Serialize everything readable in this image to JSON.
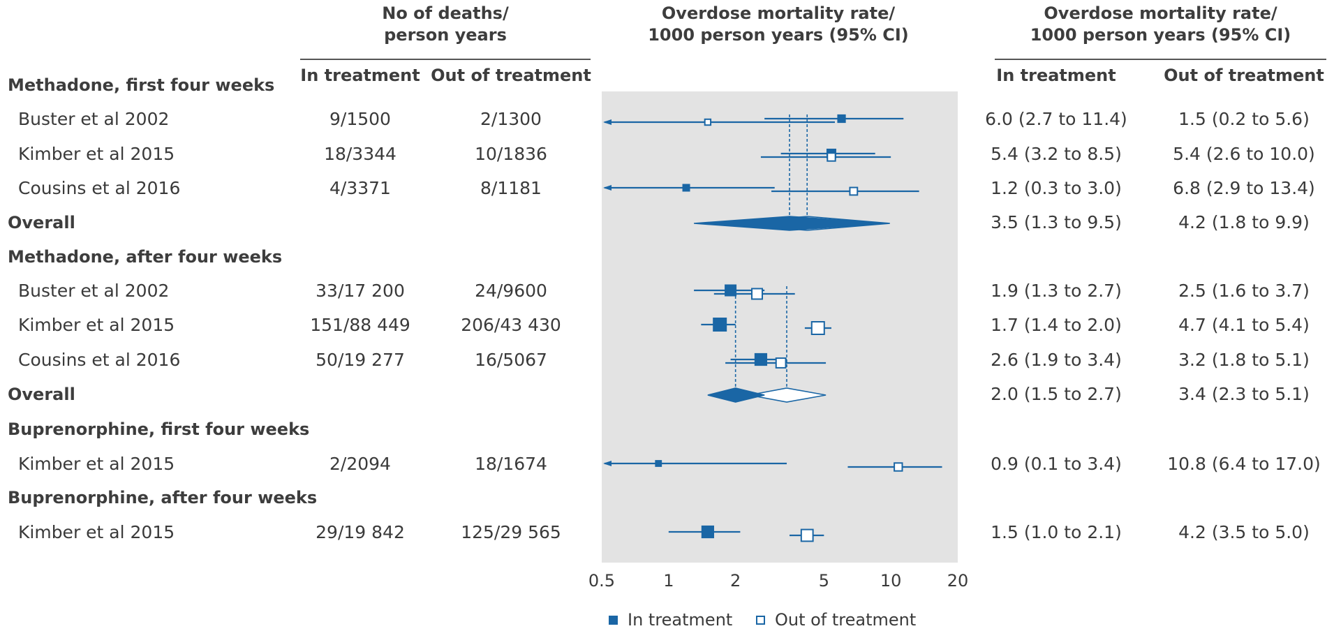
{
  "headers": {
    "deaths_line1": "No of deaths/",
    "deaths_line2": "person years",
    "plot_line1": "Overdose mortality rate/",
    "plot_line2": "1000 person years (95% CI)",
    "rate_line1": "Overdose mortality rate/",
    "rate_line2": "1000 person years (95% CI)",
    "in_treatment": "In treatment",
    "out_of_treatment": "Out of treatment"
  },
  "colors": {
    "in_treatment": "#1a66a5",
    "out_of_treatment": "#1a66a5",
    "plot_background": "#e3e3e3"
  },
  "legend": {
    "in_treatment": "In treatment",
    "out_of_treatment": "Out of treatment"
  },
  "chart_data": {
    "type": "forest",
    "xscale": "log",
    "xlim": [
      0.5,
      20
    ],
    "xticks": [
      0.5,
      1,
      2,
      5,
      10,
      20
    ],
    "xtick_labels": [
      "0.5",
      "1",
      "2",
      "5",
      "10",
      "20"
    ],
    "rows": [
      {
        "kind": "group",
        "label": "Methadone, first four weeks"
      },
      {
        "kind": "study",
        "label": "Buster et al 2002",
        "deaths_in": "9/1500",
        "deaths_out": "2/1300",
        "in": {
          "est": 6.0,
          "lo": 2.7,
          "hi": 11.4,
          "weight": 0.35
        },
        "out": {
          "est": 1.5,
          "lo": 0.2,
          "hi": 5.6,
          "weight": 0.2
        },
        "text_in": "6.0 (2.7 to 11.4)",
        "text_out": "1.5 (0.2 to 5.6)"
      },
      {
        "kind": "study",
        "label": "Kimber et al 2015",
        "deaths_in": "18/3344",
        "deaths_out": "10/1836",
        "in": {
          "est": 5.4,
          "lo": 3.2,
          "hi": 8.5,
          "weight": 0.5
        },
        "out": {
          "est": 5.4,
          "lo": 2.6,
          "hi": 10.0,
          "weight": 0.45
        },
        "text_in": "5.4 (3.2 to 8.5)",
        "text_out": "5.4 (2.6 to 10.0)"
      },
      {
        "kind": "study",
        "label": "Cousins et al 2016",
        "deaths_in": "4/3371",
        "deaths_out": "8/1181",
        "in": {
          "est": 1.2,
          "lo": 0.3,
          "hi": 3.0,
          "weight": 0.25
        },
        "out": {
          "est": 6.8,
          "lo": 2.9,
          "hi": 13.4,
          "weight": 0.4
        },
        "text_in": "1.2 (0.3 to 3.0)",
        "text_out": "6.8 (2.9 to 13.4)"
      },
      {
        "kind": "overall",
        "label": "Overall",
        "in": {
          "est": 3.5,
          "lo": 1.3,
          "hi": 9.5
        },
        "out": {
          "est": 4.2,
          "lo": 1.8,
          "hi": 9.9
        },
        "text_in": "3.5 (1.3 to 9.5)",
        "text_out": "4.2 (1.8 to 9.9)"
      },
      {
        "kind": "group",
        "label": "Methadone, after four weeks"
      },
      {
        "kind": "study",
        "label": "Buster et al 2002",
        "deaths_in": "33/17 200",
        "deaths_out": "24/9600",
        "in": {
          "est": 1.9,
          "lo": 1.3,
          "hi": 2.7,
          "weight": 0.75
        },
        "out": {
          "est": 2.5,
          "lo": 1.6,
          "hi": 3.7,
          "weight": 0.75
        },
        "text_in": "1.9 (1.3 to 2.7)",
        "text_out": "2.5 (1.6 to 3.7)"
      },
      {
        "kind": "study",
        "label": "Kimber et al 2015",
        "deaths_in": "151/88 449",
        "deaths_out": "206/43 430",
        "in": {
          "est": 1.7,
          "lo": 1.4,
          "hi": 2.0,
          "weight": 1.0
        },
        "out": {
          "est": 4.7,
          "lo": 4.1,
          "hi": 5.4,
          "weight": 1.0
        },
        "text_in": "1.7 (1.4 to 2.0)",
        "text_out": "4.7 (4.1 to 5.4)"
      },
      {
        "kind": "study",
        "label": "Cousins et al 2016",
        "deaths_in": "50/19 277",
        "deaths_out": "16/5067",
        "in": {
          "est": 2.6,
          "lo": 1.9,
          "hi": 3.4,
          "weight": 0.85
        },
        "out": {
          "est": 3.2,
          "lo": 1.8,
          "hi": 5.1,
          "weight": 0.65
        },
        "text_in": "2.6 (1.9 to 3.4)",
        "text_out": "3.2 (1.8 to 5.1)"
      },
      {
        "kind": "overall",
        "label": "Overall",
        "in": {
          "est": 2.0,
          "lo": 1.5,
          "hi": 2.7
        },
        "out": {
          "est": 3.4,
          "lo": 2.3,
          "hi": 5.1
        },
        "text_in": "2.0 (1.5 to 2.7)",
        "text_out": "3.4 (2.3 to 5.1)"
      },
      {
        "kind": "group",
        "label": "Buprenorphine, first four weeks"
      },
      {
        "kind": "study",
        "label": "Kimber et al 2015",
        "deaths_in": "2/2094",
        "deaths_out": "18/1674",
        "in": {
          "est": 0.9,
          "lo": 0.1,
          "hi": 3.4,
          "weight": 0.15
        },
        "out": {
          "est": 10.8,
          "lo": 6.4,
          "hi": 17.0,
          "weight": 0.45
        },
        "text_in": "0.9 (0.1 to 3.4)",
        "text_out": "10.8 (6.4 to 17.0)"
      },
      {
        "kind": "group",
        "label": "Buprenorphine, after four weeks"
      },
      {
        "kind": "study",
        "label": "Kimber et al 2015",
        "deaths_in": "29/19 842",
        "deaths_out": "125/29 565",
        "in": {
          "est": 1.5,
          "lo": 1.0,
          "hi": 2.1,
          "weight": 0.85
        },
        "out": {
          "est": 4.2,
          "lo": 3.5,
          "hi": 5.0,
          "weight": 0.9
        },
        "text_in": "1.5 (1.0 to 2.1)",
        "text_out": "4.2 (3.5 to 5.0)"
      }
    ]
  }
}
